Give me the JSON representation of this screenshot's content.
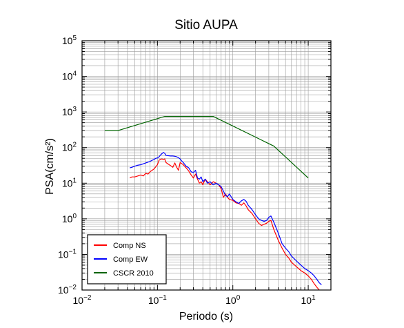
{
  "chart_data": {
    "type": "line",
    "title": "Sitio AUPA",
    "xlabel": "Periodo (s)",
    "ylabel": "PSA(cm/s²)",
    "x_scale": "log",
    "y_scale": "log",
    "xlim": [
      0.01,
      20
    ],
    "ylim": [
      0.01,
      100000
    ],
    "grid": true,
    "legend_position": "bottom-left",
    "x_ticks": [
      {
        "base": "10",
        "exp": "−2"
      },
      {
        "base": "10",
        "exp": "−1"
      },
      {
        "base": "10",
        "exp": "0"
      },
      {
        "base": "10",
        "exp": "1"
      }
    ],
    "y_ticks": [
      {
        "base": "10",
        "exp": "−2"
      },
      {
        "base": "10",
        "exp": "−1"
      },
      {
        "base": "10",
        "exp": "0"
      },
      {
        "base": "10",
        "exp": "1"
      },
      {
        "base": "10",
        "exp": "2"
      },
      {
        "base": "10",
        "exp": "3"
      },
      {
        "base": "10",
        "exp": "4"
      },
      {
        "base": "10",
        "exp": "5"
      }
    ],
    "series": [
      {
        "name": "Comp NS",
        "color": "#ff0000",
        "points": [
          [
            0.043,
            14
          ],
          [
            0.046,
            15
          ],
          [
            0.05,
            15
          ],
          [
            0.055,
            16
          ],
          [
            0.06,
            17
          ],
          [
            0.065,
            16
          ],
          [
            0.07,
            19
          ],
          [
            0.075,
            18
          ],
          [
            0.08,
            21
          ],
          [
            0.085,
            23
          ],
          [
            0.09,
            25
          ],
          [
            0.1,
            33
          ],
          [
            0.105,
            44
          ],
          [
            0.11,
            47
          ],
          [
            0.115,
            48
          ],
          [
            0.12,
            46
          ],
          [
            0.125,
            48
          ],
          [
            0.13,
            38
          ],
          [
            0.14,
            34
          ],
          [
            0.15,
            31
          ],
          [
            0.16,
            28
          ],
          [
            0.17,
            37
          ],
          [
            0.18,
            28
          ],
          [
            0.19,
            23
          ],
          [
            0.2,
            38
          ],
          [
            0.22,
            33
          ],
          [
            0.24,
            27
          ],
          [
            0.26,
            22
          ],
          [
            0.28,
            17
          ],
          [
            0.3,
            14
          ],
          [
            0.32,
            18
          ],
          [
            0.34,
            13
          ],
          [
            0.36,
            10
          ],
          [
            0.38,
            11
          ],
          [
            0.4,
            9
          ],
          [
            0.43,
            13
          ],
          [
            0.46,
            11
          ],
          [
            0.5,
            9
          ],
          [
            0.55,
            11
          ],
          [
            0.6,
            10
          ],
          [
            0.65,
            9
          ],
          [
            0.7,
            7
          ],
          [
            0.75,
            4
          ],
          [
            0.8,
            5
          ],
          [
            0.85,
            4
          ],
          [
            0.9,
            3.5
          ],
          [
            1.0,
            3.3
          ],
          [
            1.1,
            2.8
          ],
          [
            1.2,
            2.7
          ],
          [
            1.3,
            2.4
          ],
          [
            1.4,
            2.8
          ],
          [
            1.5,
            2.3
          ],
          [
            1.6,
            1.8
          ],
          [
            1.8,
            1.4
          ],
          [
            2.0,
            1.0
          ],
          [
            2.2,
            0.75
          ],
          [
            2.4,
            0.65
          ],
          [
            2.6,
            0.7
          ],
          [
            2.8,
            0.75
          ],
          [
            3.0,
            0.85
          ],
          [
            3.2,
            0.9
          ],
          [
            3.5,
            0.5
          ],
          [
            4.0,
            0.25
          ],
          [
            4.5,
            0.15
          ],
          [
            5.0,
            0.1
          ],
          [
            5.5,
            0.08
          ],
          [
            6.0,
            0.06
          ],
          [
            7.0,
            0.045
          ],
          [
            8.0,
            0.035
          ],
          [
            9.0,
            0.03
          ],
          [
            10.0,
            0.025
          ],
          [
            11.0,
            0.02
          ],
          [
            12.0,
            0.015
          ],
          [
            13.0,
            0.012
          ],
          [
            14.0,
            0.01
          ]
        ]
      },
      {
        "name": "Comp EW",
        "color": "#0000ff",
        "points": [
          [
            0.043,
            27
          ],
          [
            0.046,
            28
          ],
          [
            0.05,
            30
          ],
          [
            0.055,
            32
          ],
          [
            0.06,
            33
          ],
          [
            0.065,
            35
          ],
          [
            0.07,
            37
          ],
          [
            0.075,
            39
          ],
          [
            0.08,
            41
          ],
          [
            0.085,
            44
          ],
          [
            0.09,
            46
          ],
          [
            0.095,
            50
          ],
          [
            0.1,
            51
          ],
          [
            0.105,
            55
          ],
          [
            0.11,
            62
          ],
          [
            0.115,
            68
          ],
          [
            0.12,
            73
          ],
          [
            0.125,
            69
          ],
          [
            0.13,
            60
          ],
          [
            0.14,
            59
          ],
          [
            0.15,
            58
          ],
          [
            0.16,
            58
          ],
          [
            0.17,
            57
          ],
          [
            0.18,
            55
          ],
          [
            0.19,
            52
          ],
          [
            0.2,
            48
          ],
          [
            0.21,
            42
          ],
          [
            0.22,
            38
          ],
          [
            0.24,
            30
          ],
          [
            0.26,
            27
          ],
          [
            0.28,
            21
          ],
          [
            0.3,
            20
          ],
          [
            0.32,
            23
          ],
          [
            0.34,
            14
          ],
          [
            0.36,
            13
          ],
          [
            0.38,
            15
          ],
          [
            0.4,
            11
          ],
          [
            0.43,
            13
          ],
          [
            0.46,
            10
          ],
          [
            0.5,
            11
          ],
          [
            0.55,
            9
          ],
          [
            0.6,
            10
          ],
          [
            0.65,
            9
          ],
          [
            0.7,
            8
          ],
          [
            0.75,
            6
          ],
          [
            0.8,
            4.5
          ],
          [
            0.85,
            4.2
          ],
          [
            0.9,
            5
          ],
          [
            1.0,
            3.5
          ],
          [
            1.1,
            3.0
          ],
          [
            1.2,
            2.7
          ],
          [
            1.3,
            3.2
          ],
          [
            1.4,
            3.5
          ],
          [
            1.5,
            3.1
          ],
          [
            1.6,
            2.4
          ],
          [
            1.8,
            1.8
          ],
          [
            2.0,
            1.3
          ],
          [
            2.2,
            1.0
          ],
          [
            2.4,
            0.9
          ],
          [
            2.6,
            0.85
          ],
          [
            2.8,
            0.9
          ],
          [
            3.0,
            1.1
          ],
          [
            3.2,
            1.2
          ],
          [
            3.5,
            0.8
          ],
          [
            4.0,
            0.4
          ],
          [
            4.5,
            0.2
          ],
          [
            5.0,
            0.15
          ],
          [
            5.5,
            0.12
          ],
          [
            6.0,
            0.09
          ],
          [
            7.0,
            0.065
          ],
          [
            8.0,
            0.05
          ],
          [
            9.0,
            0.04
          ],
          [
            10.0,
            0.035
          ],
          [
            11.0,
            0.03
          ],
          [
            12.0,
            0.025
          ],
          [
            13.0,
            0.02
          ],
          [
            14.0,
            0.016
          ],
          [
            15.0,
            0.014
          ]
        ]
      },
      {
        "name": "CSCR 2010",
        "color": "#006400",
        "points": [
          [
            0.02,
            300
          ],
          [
            0.03,
            300
          ],
          [
            0.125,
            750
          ],
          [
            0.55,
            750
          ],
          [
            3.5,
            110
          ],
          [
            10.0,
            14
          ]
        ]
      }
    ]
  }
}
